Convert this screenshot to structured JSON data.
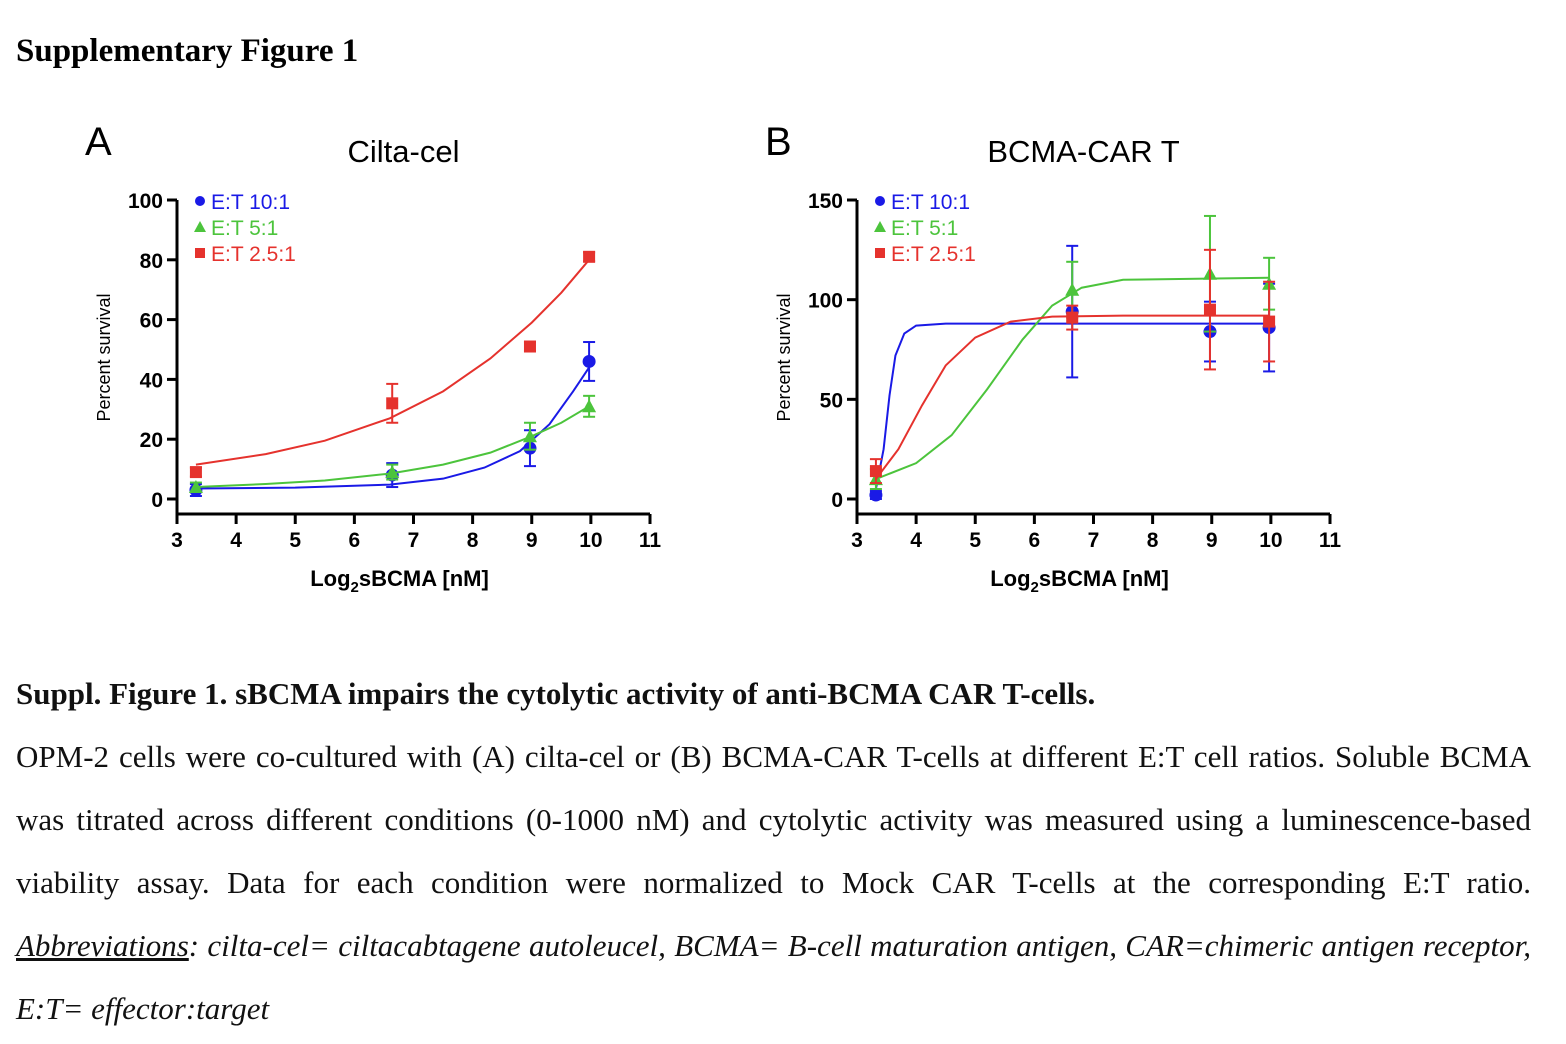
{
  "heading": "Supplementary Figure 1",
  "caption": {
    "title": "Suppl. Figure 1. sBCMA impairs the cytolytic activity of anti-BCMA CAR T-cells.",
    "body": "OPM-2 cells were co-cultured with (A) cilta-cel or (B) BCMA-CAR T-cells at different E:T cell ratios. Soluble BCMA was titrated across different conditions (0-1000 nM) and cytolytic activity was measured using a luminescence-based viability assay. Data for each condition were normalized to Mock CAR T-cells at the corresponding E:T ratio.",
    "abbr_label": "Abbreviations",
    "abbr_text": ": cilta-cel= ciltacabtagene autoleucel, BCMA= B-cell maturation antigen, CAR=chimeric antigen receptor, E:T= effector:target"
  },
  "chart_data": [
    {
      "panel_label": "A",
      "type": "scatter",
      "title": "Cilta-cel",
      "xlabel": "Log2sBCMA [nM]",
      "ylabel": "Percent survival",
      "xlim": [
        3,
        11
      ],
      "ylim": [
        0,
        100
      ],
      "xticks": [
        3,
        4,
        5,
        6,
        7,
        8,
        9,
        10,
        11
      ],
      "yticks": [
        0,
        20,
        40,
        60,
        80,
        100
      ],
      "legend_position": "top-left",
      "grid": false,
      "series": [
        {
          "name": "E:T 10:1",
          "color": "#1a1ae6",
          "marker": "circle",
          "x": [
            3.32,
            6.64,
            8.97,
            9.97
          ],
          "y": [
            3,
            8,
            17,
            46
          ],
          "err": [
            2,
            4,
            6,
            6.5
          ],
          "fit": [
            [
              3.32,
              3.5
            ],
            [
              5,
              3.8
            ],
            [
              6.6,
              4.8
            ],
            [
              7.5,
              6.8
            ],
            [
              8.2,
              10.5
            ],
            [
              8.8,
              16
            ],
            [
              9.3,
              25
            ],
            [
              9.7,
              36
            ],
            [
              9.97,
              44
            ]
          ]
        },
        {
          "name": "E:T 5:1",
          "color": "#4cc43c",
          "marker": "triangle",
          "x": [
            3.32,
            6.64,
            8.97,
            9.97
          ],
          "y": [
            4,
            9,
            21,
            31
          ],
          "err": [
            1.5,
            2.5,
            4.5,
            3.5
          ],
          "fit": [
            [
              3.32,
              4
            ],
            [
              4.5,
              5
            ],
            [
              5.5,
              6.2
            ],
            [
              6.6,
              8.5
            ],
            [
              7.5,
              11.5
            ],
            [
              8.3,
              15.5
            ],
            [
              9,
              21
            ],
            [
              9.5,
              25.5
            ],
            [
              9.97,
              31
            ]
          ]
        },
        {
          "name": "E:T 2.5:1",
          "color": "#e5322d",
          "marker": "square",
          "x": [
            3.32,
            6.64,
            8.97,
            9.97
          ],
          "y": [
            9,
            32,
            51,
            81
          ],
          "err": [
            1.5,
            6.5,
            1.5,
            1.5
          ],
          "fit": [
            [
              3.32,
              11.5
            ],
            [
              4.5,
              15
            ],
            [
              5.5,
              19.5
            ],
            [
              6.6,
              27
            ],
            [
              7.5,
              36
            ],
            [
              8.3,
              47
            ],
            [
              9,
              59
            ],
            [
              9.5,
              69
            ],
            [
              9.97,
              80
            ]
          ]
        }
      ]
    },
    {
      "panel_label": "B",
      "type": "scatter",
      "title": "BCMA-CAR T",
      "xlabel": "Log2sBCMA [nM]",
      "ylabel": "Percent survival",
      "xlim": [
        3,
        11
      ],
      "ylim": [
        0,
        150
      ],
      "xticks": [
        3,
        4,
        5,
        6,
        7,
        8,
        9,
        10,
        11
      ],
      "yticks": [
        0,
        50,
        100,
        150
      ],
      "legend_position": "top-left",
      "grid": false,
      "series": [
        {
          "name": "E:T 10:1",
          "color": "#1a1ae6",
          "marker": "circle",
          "x": [
            3.32,
            6.64,
            8.97,
            9.97
          ],
          "y": [
            2,
            94,
            84,
            86
          ],
          "err": [
            2,
            33,
            15,
            22
          ],
          "fit": [
            [
              3.32,
              5
            ],
            [
              3.45,
              25
            ],
            [
              3.55,
              52
            ],
            [
              3.65,
              72
            ],
            [
              3.8,
              83
            ],
            [
              4.0,
              87
            ],
            [
              4.5,
              88
            ],
            [
              6,
              88
            ],
            [
              9.97,
              88
            ]
          ]
        },
        {
          "name": "E:T 5:1",
          "color": "#4cc43c",
          "marker": "triangle",
          "x": [
            3.32,
            6.64,
            8.97,
            9.97
          ],
          "y": [
            10,
            105,
            113,
            108
          ],
          "err": [
            5,
            14,
            29,
            13
          ],
          "fit": [
            [
              3.32,
              10
            ],
            [
              4,
              18
            ],
            [
              4.6,
              32
            ],
            [
              5.2,
              55
            ],
            [
              5.8,
              80
            ],
            [
              6.3,
              97
            ],
            [
              6.8,
              106
            ],
            [
              7.5,
              110
            ],
            [
              9.97,
              111
            ]
          ]
        },
        {
          "name": "E:T 2.5:1",
          "color": "#e5322d",
          "marker": "square",
          "x": [
            3.32,
            6.64,
            8.97,
            9.97
          ],
          "y": [
            14,
            91,
            95,
            89
          ],
          "err": [
            6,
            6,
            30,
            20
          ],
          "fit": [
            [
              3.32,
              10
            ],
            [
              3.7,
              25
            ],
            [
              4.1,
              47
            ],
            [
              4.5,
              67
            ],
            [
              5,
              81
            ],
            [
              5.6,
              89
            ],
            [
              6.3,
              91.5
            ],
            [
              7.5,
              92
            ],
            [
              9.97,
              92
            ]
          ]
        }
      ]
    }
  ]
}
